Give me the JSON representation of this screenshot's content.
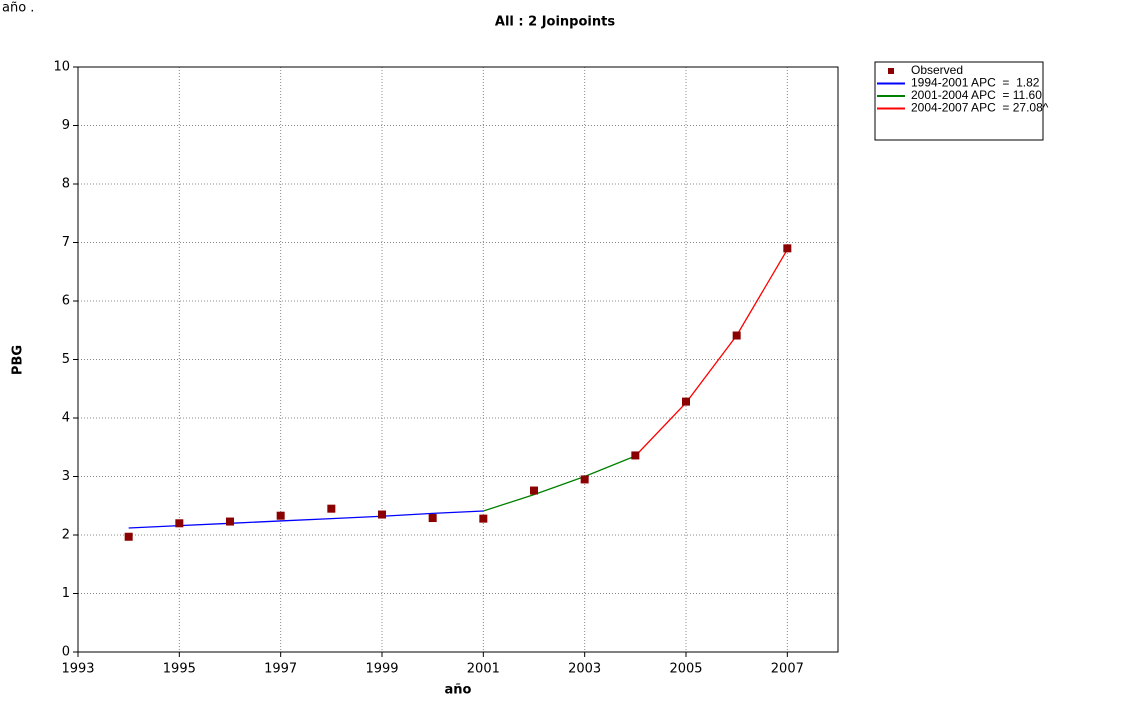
{
  "chart_data": {
    "type": "line",
    "corner_text": "año .",
    "title": "All : 2 Joinpoints",
    "x_label": "año",
    "y_label": "PBG",
    "xlim": [
      1993,
      2008
    ],
    "ylim": [
      0,
      10
    ],
    "xticks": [
      1993,
      1995,
      1997,
      1999,
      2001,
      2003,
      2005,
      2007
    ],
    "yticks": [
      0,
      1,
      2,
      3,
      4,
      5,
      6,
      7,
      8,
      9,
      10
    ],
    "grid": true,
    "legend": "right",
    "series": [
      {
        "name": "Observed",
        "mode": "markers",
        "color": "#8b0000",
        "x": [
          1994,
          1995,
          1996,
          1997,
          1998,
          1999,
          2000,
          2001,
          2002,
          2003,
          2004,
          2005,
          2006,
          2007
        ],
        "values": [
          1.97,
          2.2,
          2.23,
          2.33,
          2.45,
          2.35,
          2.29,
          2.28,
          2.76,
          2.95,
          3.36,
          4.28,
          5.41,
          6.9
        ]
      },
      {
        "name": "1994-2001 APC  =  1.82",
        "mode": "lines",
        "color": "#0000ff",
        "x": [
          1994,
          1995,
          1996,
          1997,
          1998,
          1999,
          2000,
          2001
        ],
        "values": [
          2.12,
          2.16,
          2.2,
          2.24,
          2.28,
          2.32,
          2.37,
          2.41
        ]
      },
      {
        "name": "2001-2004 APC  = 11.60",
        "mode": "lines",
        "color": "#008000",
        "x": [
          2001,
          2002,
          2003,
          2004
        ],
        "values": [
          2.41,
          2.69,
          3.0,
          3.35
        ]
      },
      {
        "name": "2004-2007 APC  = 27.08^",
        "mode": "lines",
        "color": "#ff0000",
        "x": [
          2004,
          2005,
          2006,
          2007
        ],
        "values": [
          3.35,
          4.26,
          5.41,
          6.88
        ]
      }
    ]
  }
}
